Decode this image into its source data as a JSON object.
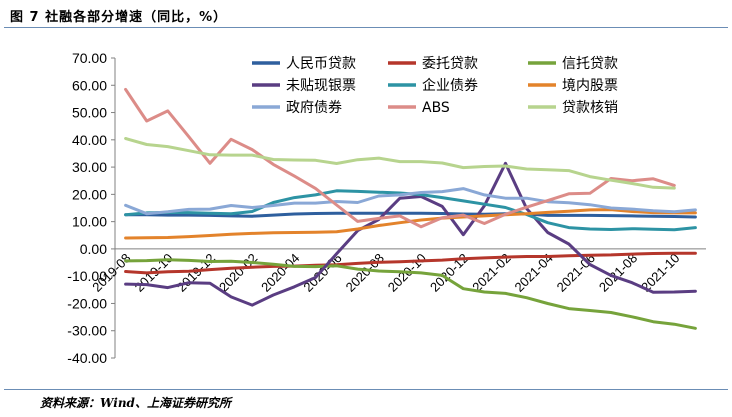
{
  "title": "图 7 社融各部分增速（同比，%）",
  "source": "资料来源：Wind、上海证券研究所",
  "chart_data": {
    "type": "line",
    "ylim": [
      -40,
      70
    ],
    "yticks": [
      "70.00",
      "60.00",
      "50.00",
      "40.00",
      "30.00",
      "20.00",
      "10.00",
      "0.00",
      "-10.00",
      "-20.00",
      "-30.00",
      "-40.00"
    ],
    "x": [
      "2019-08",
      "2019-09",
      "2019-10",
      "2019-11",
      "2019-12",
      "2020-01",
      "2020-02",
      "2020-03",
      "2020-04",
      "2020-05",
      "2020-06",
      "2020-07",
      "2020-08",
      "2020-09",
      "2020-10",
      "2020-11",
      "2020-12",
      "2021-01",
      "2021-02",
      "2021-03",
      "2021-04",
      "2021-05",
      "2021-06",
      "2021-07",
      "2021-08",
      "2021-09",
      "2021-10",
      "2021-11"
    ],
    "xlabels": [
      "2019-08",
      "2019-10",
      "2019-12",
      "2020-02",
      "2020-04",
      "2020-06",
      "2020-08",
      "2020-10",
      "2020-12",
      "2021-02",
      "2021-04",
      "2021-06",
      "2021-08",
      "2021-10"
    ],
    "legend_placement": "top",
    "series": [
      {
        "name": "人民币贷款",
        "color": "#2e5f9e",
        "values": [
          12.5,
          12.5,
          12.4,
          12.4,
          12.3,
          12.1,
          12.0,
          12.4,
          12.8,
          13.0,
          13.1,
          13.1,
          13.1,
          13.1,
          13.1,
          13.0,
          12.8,
          12.7,
          12.9,
          12.8,
          12.3,
          12.3,
          12.3,
          12.2,
          12.1,
          12.0,
          11.9,
          11.7
        ]
      },
      {
        "name": "委托贷款",
        "color": "#b5362b",
        "values": [
          -8.3,
          -8.8,
          -8.4,
          -8.2,
          -7.6,
          -7.1,
          -6.7,
          -6.4,
          -6.3,
          -6.0,
          -5.8,
          -5.3,
          -4.9,
          -4.7,
          -4.4,
          -4.1,
          -3.6,
          -3.3,
          -3.0,
          -2.8,
          -2.8,
          -2.5,
          -2.3,
          -2.2,
          -1.9,
          -1.7,
          -1.6,
          -1.6
        ]
      },
      {
        "name": "信托贷款",
        "color": "#76a33b",
        "values": [
          -4.4,
          -4.3,
          -4.0,
          -4.2,
          -4.6,
          -4.5,
          -5.0,
          -5.6,
          -6.4,
          -6.5,
          -6.2,
          -7.4,
          -8.1,
          -8.4,
          -8.8,
          -9.7,
          -14.6,
          -15.8,
          -16.3,
          -17.9,
          -20.0,
          -21.9,
          -22.6,
          -23.3,
          -24.9,
          -26.7,
          -27.6,
          -29.1
        ]
      },
      {
        "name": "未贴现银票",
        "color": "#5a3d82",
        "values": [
          -12.9,
          -13.1,
          -14.2,
          -12.4,
          -12.6,
          -17.6,
          -20.6,
          -16.9,
          -13.9,
          -10.5,
          -1.8,
          6.7,
          10.8,
          18.6,
          19.2,
          15.6,
          5.2,
          15.8,
          31.4,
          14.8,
          6.0,
          1.8,
          -5.7,
          -9.7,
          -12.4,
          -15.9,
          -15.8,
          -15.5
        ]
      },
      {
        "name": "企业债券",
        "color": "#2d93a4",
        "values": [
          12.5,
          13.2,
          13.4,
          13.3,
          13.1,
          12.9,
          13.7,
          17.0,
          18.8,
          19.8,
          21.3,
          21.1,
          20.8,
          20.5,
          19.9,
          18.8,
          17.6,
          16.4,
          15.2,
          12.6,
          9.6,
          7.8,
          7.3,
          7.1,
          7.4,
          7.2,
          7.0,
          7.8
        ]
      },
      {
        "name": "境内股票",
        "color": "#e3832b",
        "values": [
          4.0,
          4.1,
          4.2,
          4.5,
          4.9,
          5.4,
          5.7,
          5.9,
          6.0,
          6.1,
          6.3,
          7.3,
          8.6,
          9.6,
          10.6,
          11.3,
          11.7,
          12.1,
          12.5,
          12.9,
          13.4,
          13.8,
          14.3,
          14.4,
          13.7,
          13.3,
          13.2,
          13.2
        ]
      },
      {
        "name": "政府债券",
        "color": "#8aa8d6",
        "values": [
          16.0,
          12.9,
          13.6,
          14.5,
          14.6,
          15.9,
          15.2,
          15.9,
          16.8,
          16.8,
          17.4,
          17.0,
          19.4,
          19.8,
          20.7,
          21.0,
          22.1,
          19.8,
          18.6,
          18.6,
          17.3,
          16.9,
          16.2,
          15.0,
          14.6,
          14.0,
          13.6,
          14.3
        ]
      },
      {
        "name": "ABS",
        "color": "#dc8c88",
        "values": [
          58.5,
          46.9,
          50.6,
          41.1,
          31.4,
          40.2,
          36.4,
          31.0,
          26.7,
          22.2,
          16.1,
          10.1,
          11.2,
          12.1,
          8.1,
          11.4,
          12.4,
          9.3,
          12.7,
          15.3,
          17.7,
          20.2,
          20.4,
          25.8,
          25.0,
          25.7,
          23.3,
          null
        ]
      },
      {
        "name": "贷款核销",
        "color": "#b7d48e",
        "values": [
          40.5,
          38.3,
          37.5,
          36.0,
          34.5,
          34.4,
          34.4,
          32.8,
          32.6,
          32.5,
          31.3,
          32.7,
          33.3,
          32.0,
          32.0,
          31.5,
          29.8,
          30.2,
          30.4,
          29.3,
          29.0,
          28.7,
          26.5,
          25.2,
          24.0,
          22.6,
          22.3,
          null
        ]
      }
    ]
  }
}
